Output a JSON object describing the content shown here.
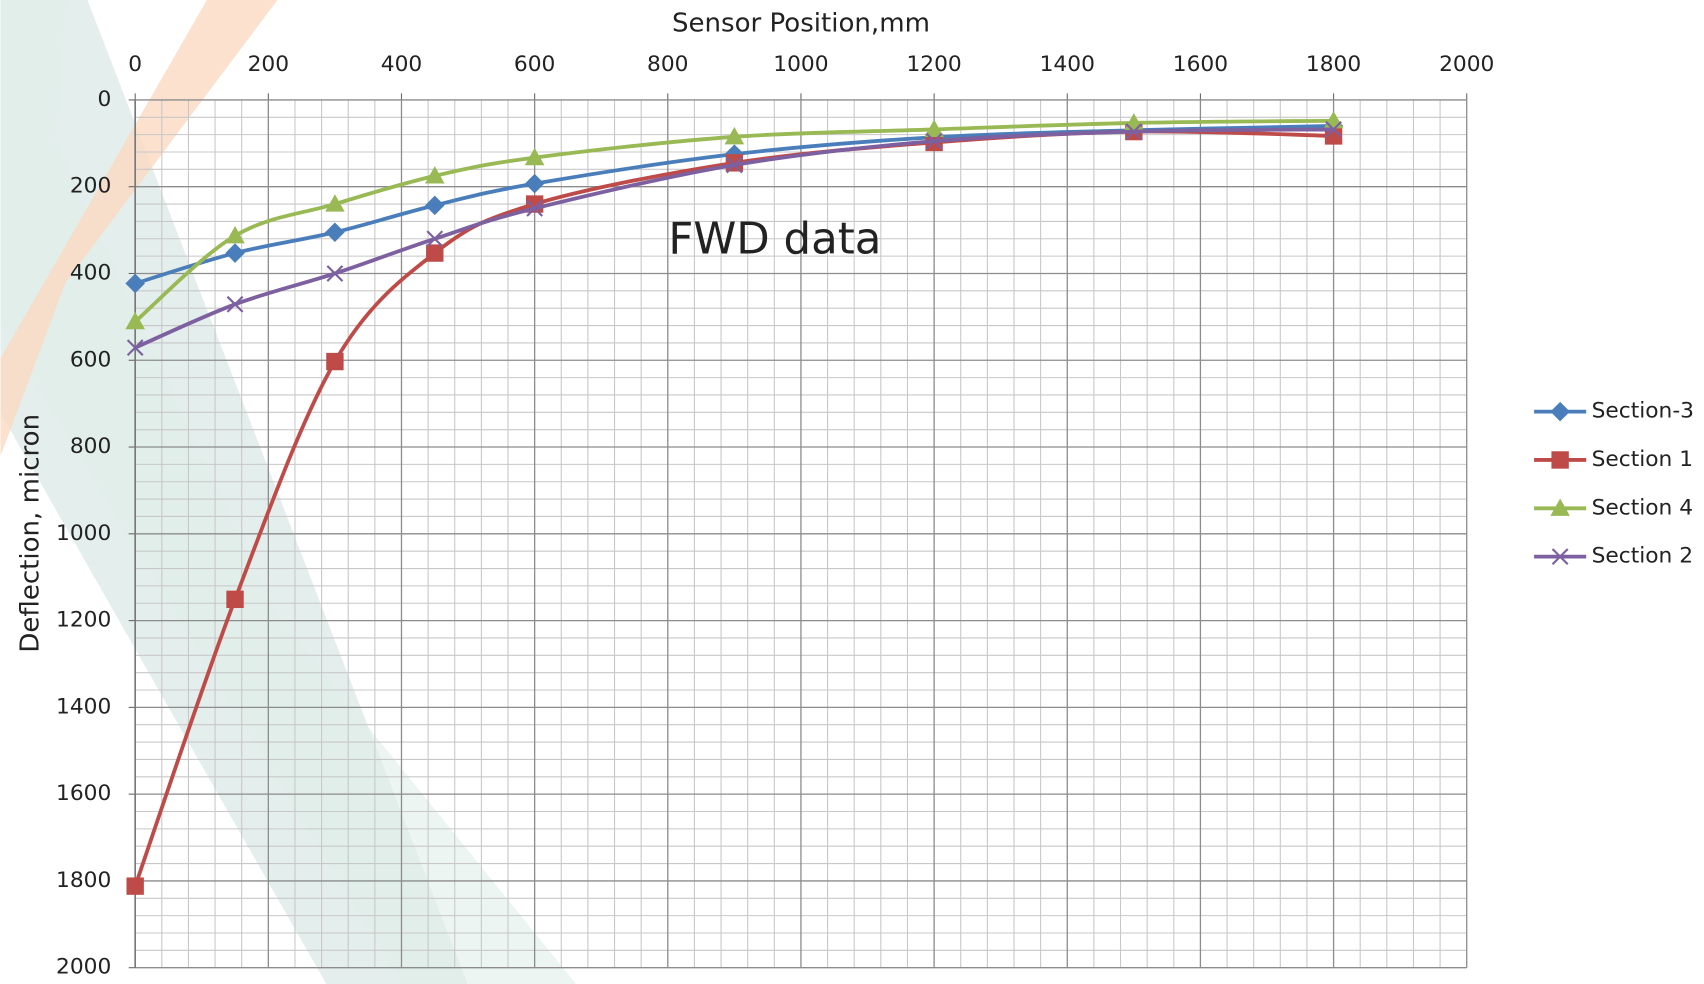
{
  "chart_data": {
    "type": "line",
    "x_label": "Sensor Position,mm",
    "y_label": "Deflection, micron",
    "annotation": "FWD data",
    "x": [
      0,
      150,
      300,
      450,
      600,
      900,
      1200,
      1500,
      1800
    ],
    "series": [
      {
        "name": "Section-3",
        "color": "#4a7ebb",
        "marker": "diamond",
        "values": [
          423,
          353,
          305,
          243,
          193,
          125,
          86,
          70,
          60
        ]
      },
      {
        "name": "Section 1",
        "color": "#be4b48",
        "marker": "square",
        "values": [
          1812,
          1151,
          603,
          353,
          240,
          145,
          98,
          73,
          83
        ]
      },
      {
        "name": "Section 4",
        "color": "#98b954",
        "marker": "triangle",
        "values": [
          511,
          313,
          240,
          175,
          133,
          85,
          68,
          53,
          48
        ]
      },
      {
        "name": "Section 2",
        "color": "#7d60a0",
        "marker": "x",
        "values": [
          571,
          471,
          400,
          320,
          250,
          150,
          95,
          73,
          68
        ]
      }
    ],
    "xlim": [
      0,
      2000
    ],
    "xticks": [
      0,
      200,
      400,
      600,
      800,
      1000,
      1200,
      1400,
      1600,
      1800,
      2000
    ],
    "ylim": [
      0,
      2000
    ],
    "yticks": [
      0,
      200,
      400,
      600,
      800,
      1000,
      1200,
      1400,
      1600,
      1800,
      2000
    ],
    "y_inverted": true,
    "x_axis_position": "top",
    "grid": true,
    "smooth": true,
    "legend": "right"
  }
}
